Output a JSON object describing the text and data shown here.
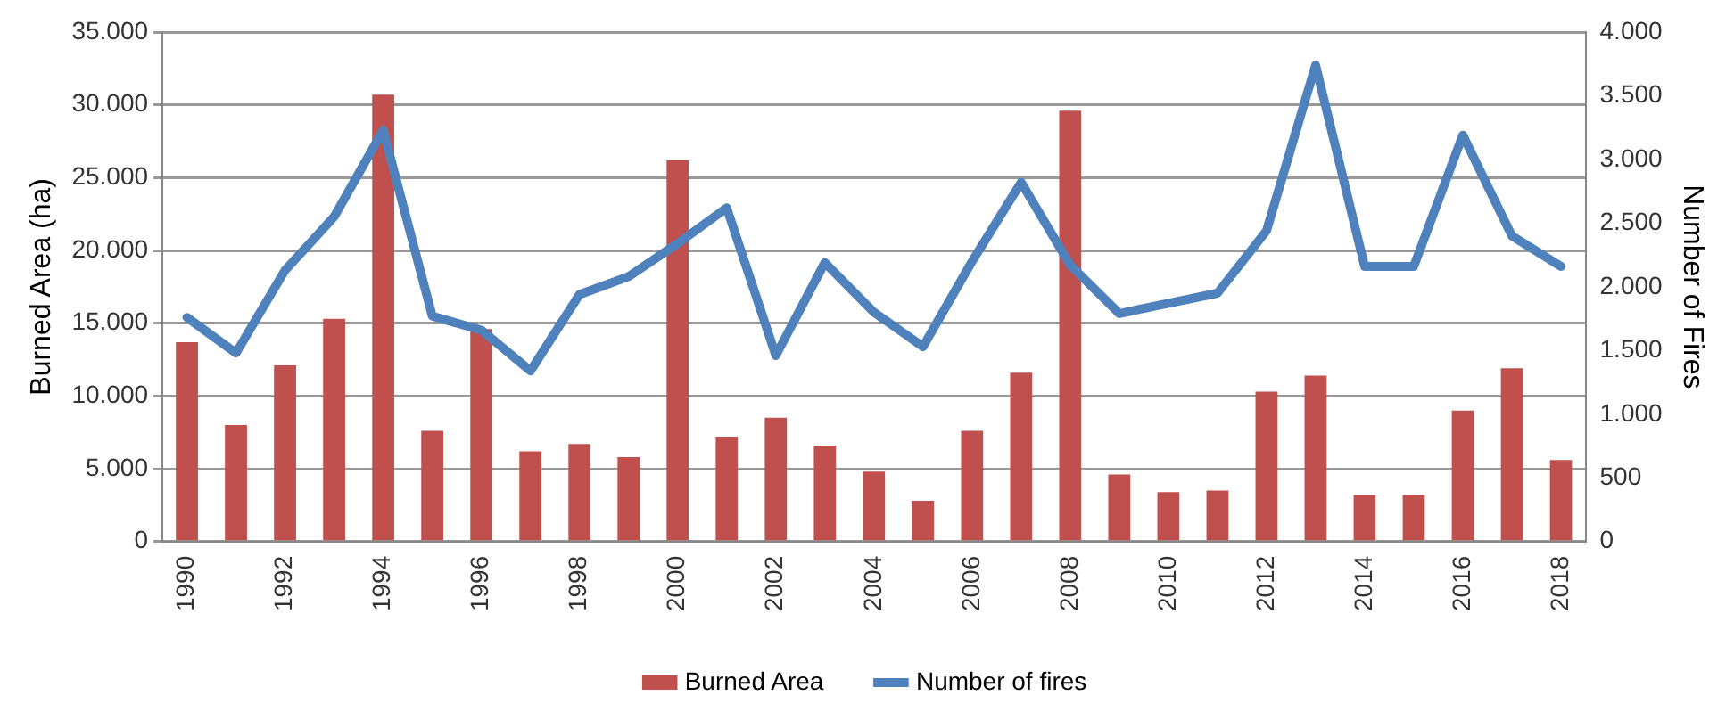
{
  "chart_data": {
    "type": "bar",
    "ylabel": "Burned Area (ha)",
    "y2label": "Number of Fires",
    "categories": [
      "1990",
      null,
      "1992",
      null,
      "1994",
      null,
      "1996",
      null,
      "1998",
      null,
      "2000",
      null,
      "2002",
      null,
      "2004",
      null,
      "2006",
      null,
      "2008",
      null,
      "2010",
      null,
      "2012",
      null,
      "2014",
      null,
      "2016",
      null,
      "2018"
    ],
    "series": [
      {
        "name": "Burned Area",
        "color": "#c0504d",
        "values": [
          13700,
          8000,
          12100,
          15300,
          30700,
          7600,
          14600,
          6200,
          6700,
          5800,
          26200,
          7200,
          8500,
          6600,
          4800,
          2800,
          7600,
          11600,
          29600,
          4600,
          3400,
          3500,
          10300,
          11400,
          3200,
          3200,
          9000,
          11900,
          5600
        ]
      },
      {
        "name": "Number of fires",
        "type": "line",
        "axis": "y2",
        "color": "#4f81bd",
        "values": [
          1760,
          1480,
          2130,
          2550,
          3230,
          1770,
          1660,
          1340,
          1940,
          2080,
          2340,
          2620,
          1460,
          2190,
          1800,
          1530,
          2200,
          2820,
          2170,
          1790,
          1870,
          1950,
          2440,
          3740,
          2160,
          2160,
          3190,
          2400,
          2160
        ]
      }
    ],
    "ylim": [
      0,
      35000
    ],
    "yticks": [
      0,
      {
        "value": 5000,
        "label": "5.000"
      },
      {
        "value": 10000,
        "label": "10.000"
      },
      {
        "value": 15000,
        "label": "15.000"
      },
      {
        "value": 20000,
        "label": "20.000"
      },
      {
        "value": 25000,
        "label": "25.000"
      },
      {
        "value": 30000,
        "label": "30.000"
      },
      {
        "value": 35000,
        "label": "35.000"
      }
    ],
    "y2lim": [
      0,
      4000
    ],
    "y2ticks": [
      0,
      500,
      {
        "value": 1000,
        "label": "1.000"
      },
      {
        "value": 1500,
        "label": "1.500"
      },
      {
        "value": 2000,
        "label": "2.000"
      },
      {
        "value": 2500,
        "label": "2.500"
      },
      {
        "value": 3000,
        "label": "3.000"
      },
      {
        "value": 3500,
        "label": "3.500"
      },
      {
        "value": 4000,
        "label": "4.000"
      }
    ],
    "grid": "y",
    "legend": "bottom",
    "marker": "none",
    "line_style": "solid"
  }
}
